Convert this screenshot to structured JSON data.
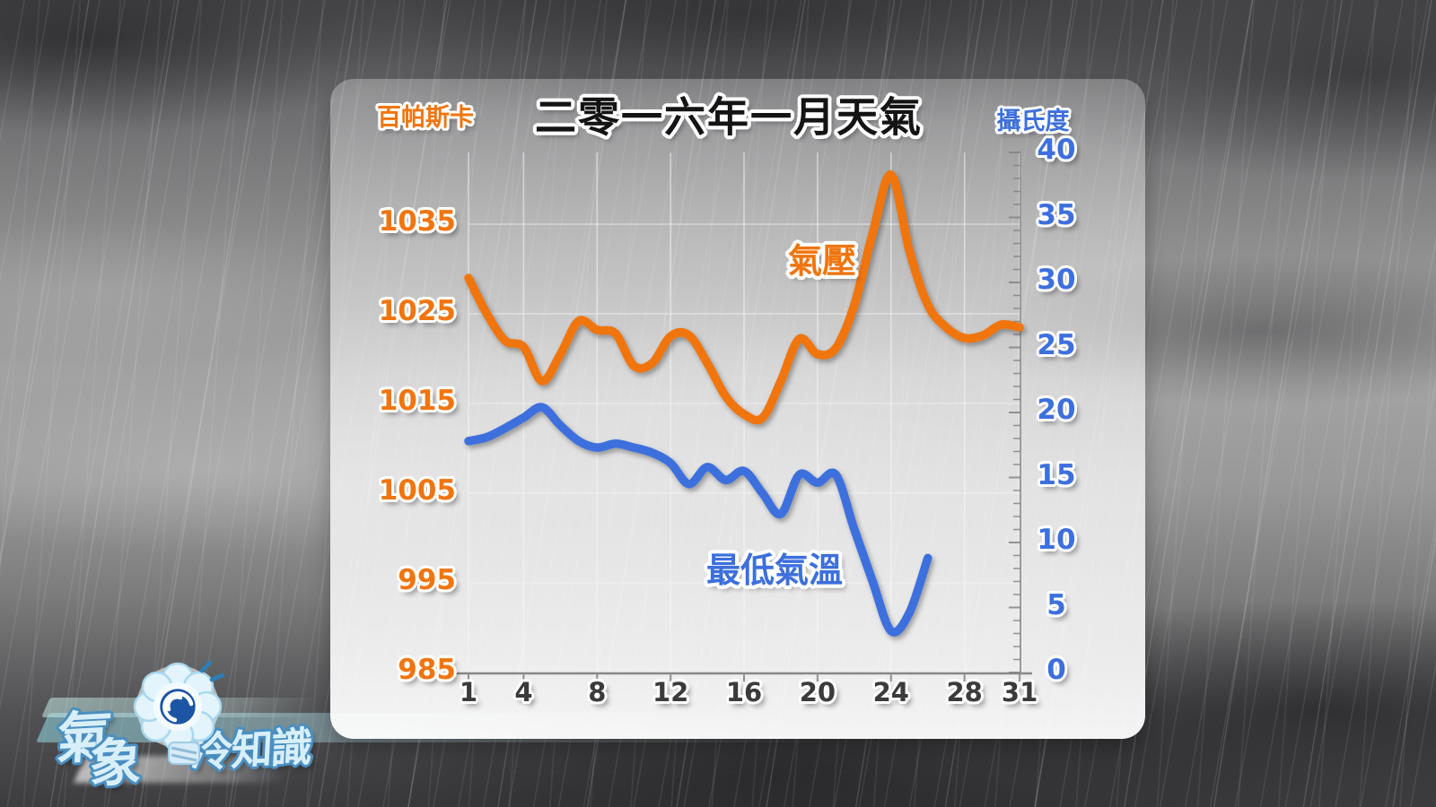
{
  "title": "二零一六年一月天氣",
  "left_axis": {
    "unit": "百帕斯卡",
    "ticks": [
      1035,
      1025,
      1015,
      1005,
      995,
      985
    ],
    "color": "#f0750f"
  },
  "right_axis": {
    "unit": "攝氏度",
    "ticks": [
      40,
      35,
      30,
      25,
      20,
      15,
      10,
      5,
      0
    ],
    "color": "#3d6fdd"
  },
  "x_axis": {
    "ticks": [
      1,
      4,
      8,
      12,
      16,
      20,
      24,
      28,
      31
    ]
  },
  "chart_data": {
    "type": "line",
    "title": "二零一六年一月天氣",
    "x_range": [
      1,
      31
    ],
    "x_tick_labels": [
      1,
      4,
      8,
      12,
      16,
      20,
      24,
      28,
      31
    ],
    "ylim_left": [
      985,
      1035
    ],
    "ylim_right": [
      0,
      40
    ],
    "grid": true,
    "legend_position": "inline-labels",
    "series": [
      {
        "name": "氣壓",
        "axis": "left",
        "unit": "hPa",
        "color": "#f0750f",
        "x": [
          1,
          2,
          3,
          4,
          5,
          6,
          7,
          8,
          9,
          10,
          11,
          12,
          13,
          14,
          15,
          16,
          17,
          18,
          19,
          20,
          21,
          22,
          23,
          24,
          25,
          26,
          27,
          28,
          29,
          30,
          31
        ],
        "values": [
          1029,
          1025,
          1022,
          1021.3,
          1017.5,
          1020.5,
          1024.2,
          1023.2,
          1022.8,
          1019.2,
          1019.5,
          1022.5,
          1022.6,
          1019.5,
          1015.8,
          1013.8,
          1013.4,
          1017.5,
          1022.2,
          1020.5,
          1021.2,
          1026,
          1034,
          1040.5,
          1032,
          1026,
          1023.5,
          1022.3,
          1022.6,
          1023.8,
          1023.5
        ]
      },
      {
        "name": "最低氣溫",
        "axis": "right",
        "unit": "°C",
        "color": "#3d6fdd",
        "x": [
          1,
          2,
          3,
          4,
          5,
          6,
          7,
          8,
          9,
          10,
          11,
          12,
          13,
          14,
          15,
          16,
          17,
          18,
          19,
          20,
          21,
          22,
          23,
          24,
          25,
          26
        ],
        "values": [
          17.8,
          18.1,
          18.8,
          19.6,
          20.4,
          19,
          17.8,
          17.3,
          17.6,
          17.3,
          16.9,
          16.1,
          14.5,
          15.8,
          14.8,
          15.5,
          13.8,
          12.2,
          15.2,
          14.6,
          15.2,
          11,
          7,
          3.2,
          4.6,
          8.8
        ]
      }
    ]
  },
  "logo": {
    "name": "氣象冷知識",
    "char1": "氣",
    "char2": "象",
    "suffix": "冷知識"
  },
  "colors": {
    "pressure": "#f0750f",
    "temperature": "#3d6fdd",
    "x_tick": "#3b3b3b",
    "title": "#141414"
  }
}
